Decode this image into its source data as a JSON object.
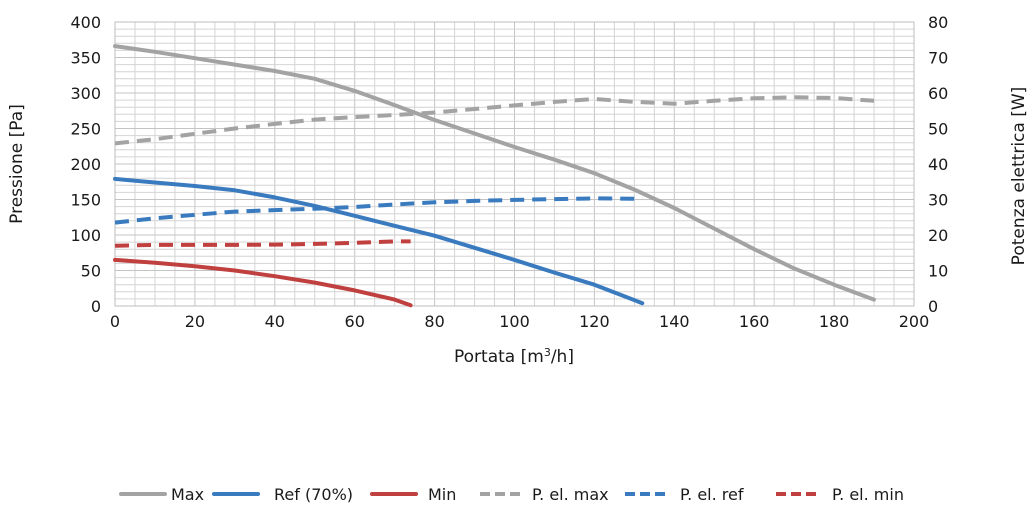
{
  "chart_data": {
    "type": "line",
    "title": "",
    "xlabel": "Portata [m",
    "xlabel_sup": "3",
    "xlabel_tail": "/h]",
    "ylabel": "Pressione [Pa]",
    "y2label": "Potenza elettrica [W]",
    "xlim": [
      0,
      200
    ],
    "ylim": [
      0,
      400
    ],
    "y2lim": [
      0,
      80
    ],
    "x_ticks": [
      "0",
      "20",
      "40",
      "60",
      "80",
      "100",
      "120",
      "140",
      "160",
      "180",
      "200"
    ],
    "y_ticks": [
      "0",
      "50",
      "100",
      "150",
      "200",
      "250",
      "300",
      "350",
      "400"
    ],
    "y2_ticks": [
      "0",
      "10",
      "20",
      "30",
      "40",
      "50",
      "60",
      "70",
      "80"
    ],
    "grid": true,
    "legend_position": "bottom",
    "series": [
      {
        "name": "Max",
        "axis": "left",
        "dash": "solid",
        "color": "#a3a3a3",
        "points": [
          [
            0,
            366
          ],
          [
            10,
            358
          ],
          [
            20,
            349
          ],
          [
            30,
            340
          ],
          [
            40,
            331
          ],
          [
            50,
            320
          ],
          [
            60,
            303
          ],
          [
            70,
            283
          ],
          [
            80,
            262
          ],
          [
            90,
            243
          ],
          [
            100,
            224
          ],
          [
            110,
            206
          ],
          [
            120,
            187
          ],
          [
            130,
            164
          ],
          [
            140,
            138
          ],
          [
            150,
            109
          ],
          [
            160,
            80
          ],
          [
            170,
            53
          ],
          [
            180,
            30
          ],
          [
            190,
            9
          ]
        ]
      },
      {
        "name": "Ref (70%)",
        "axis": "left",
        "dash": "solid",
        "color": "#3a7abf",
        "points": [
          [
            0,
            179
          ],
          [
            10,
            174
          ],
          [
            20,
            169
          ],
          [
            30,
            163
          ],
          [
            40,
            153
          ],
          [
            50,
            141
          ],
          [
            60,
            127
          ],
          [
            70,
            113
          ],
          [
            80,
            99
          ],
          [
            90,
            82
          ],
          [
            100,
            65
          ],
          [
            110,
            47
          ],
          [
            120,
            30
          ],
          [
            132,
            4
          ]
        ]
      },
      {
        "name": "Min",
        "axis": "left",
        "dash": "solid",
        "color": "#c0403f",
        "points": [
          [
            0,
            65
          ],
          [
            10,
            61
          ],
          [
            20,
            56
          ],
          [
            30,
            50
          ],
          [
            40,
            42
          ],
          [
            50,
            33
          ],
          [
            60,
            22
          ],
          [
            70,
            9
          ],
          [
            74,
            1
          ]
        ]
      },
      {
        "name": "P. el. max",
        "axis": "right",
        "dash": "dashed",
        "color": "#a3a3a3",
        "points": [
          [
            0,
            45.8
          ],
          [
            10,
            47
          ],
          [
            20,
            48.5
          ],
          [
            30,
            50
          ],
          [
            40,
            51.3
          ],
          [
            50,
            52.5
          ],
          [
            60,
            53.2
          ],
          [
            70,
            53.8
          ],
          [
            80,
            54.5
          ],
          [
            90,
            55.5
          ],
          [
            100,
            56.5
          ],
          [
            110,
            57.5
          ],
          [
            120,
            58.3
          ],
          [
            130,
            57.5
          ],
          [
            140,
            57
          ],
          [
            150,
            57.8
          ],
          [
            160,
            58.5
          ],
          [
            170,
            58.8
          ],
          [
            180,
            58.6
          ],
          [
            190,
            57.8
          ]
        ]
      },
      {
        "name": "P. el. ref",
        "axis": "right",
        "dash": "dashed",
        "color": "#3a7abf",
        "points": [
          [
            0,
            23.5
          ],
          [
            10,
            24.7
          ],
          [
            20,
            25.7
          ],
          [
            30,
            26.6
          ],
          [
            40,
            27
          ],
          [
            50,
            27.4
          ],
          [
            60,
            27.9
          ],
          [
            70,
            28.6
          ],
          [
            80,
            29.2
          ],
          [
            90,
            29.6
          ],
          [
            100,
            29.9
          ],
          [
            110,
            30.1
          ],
          [
            120,
            30.3
          ],
          [
            132,
            30.2
          ]
        ]
      },
      {
        "name": "P. el. min",
        "axis": "right",
        "dash": "dashed",
        "color": "#c0403f",
        "points": [
          [
            0,
            17
          ],
          [
            10,
            17.2
          ],
          [
            20,
            17.2
          ],
          [
            30,
            17.2
          ],
          [
            40,
            17.3
          ],
          [
            50,
            17.5
          ],
          [
            60,
            17.8
          ],
          [
            70,
            18.2
          ],
          [
            74,
            18.2
          ]
        ]
      }
    ]
  }
}
